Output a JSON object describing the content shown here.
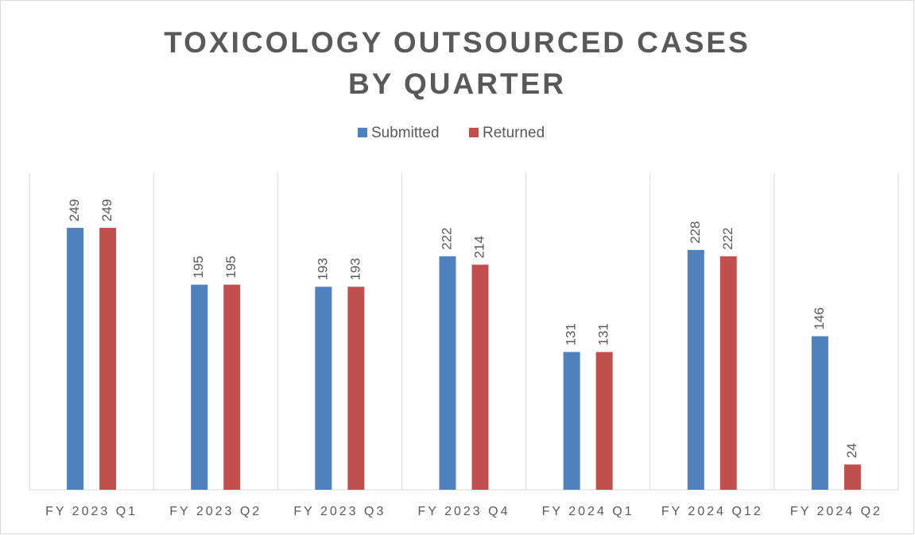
{
  "chart_data": {
    "type": "bar",
    "title": "TOXICOLOGY OUTSOURCED CASES BY QUARTER",
    "categories": [
      "FY 2023 Q1",
      "FY 2023 Q2",
      "FY 2023 Q3",
      "FY 2023 Q4",
      "FY 2024 Q1",
      "FY 2024 Q12",
      "FY 2024 Q2"
    ],
    "series": [
      {
        "name": "Submitted",
        "color": "#4f81bd",
        "values": [
          249,
          195,
          193,
          222,
          131,
          228,
          146
        ]
      },
      {
        "name": "Returned",
        "color": "#c0504d",
        "values": [
          249,
          195,
          193,
          214,
          131,
          222,
          24
        ]
      }
    ],
    "ylim": [
      0,
      300
    ],
    "legend": "top",
    "data_labels": true
  }
}
